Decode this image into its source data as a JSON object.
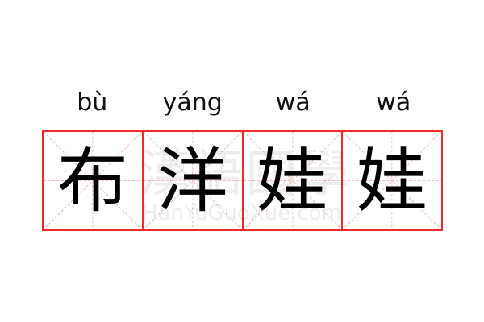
{
  "pinyin": [
    "bù",
    "yáng",
    "wá",
    "wá"
  ],
  "characters": [
    "布",
    "洋",
    "娃",
    "娃"
  ],
  "watermark": {
    "chinese": "漢語國學",
    "latin": "HanYuGuoXue.com"
  },
  "colors": {
    "grid_border": "#ee2a2a",
    "guide_lines": "#f4a0a0",
    "text": "#000000"
  }
}
